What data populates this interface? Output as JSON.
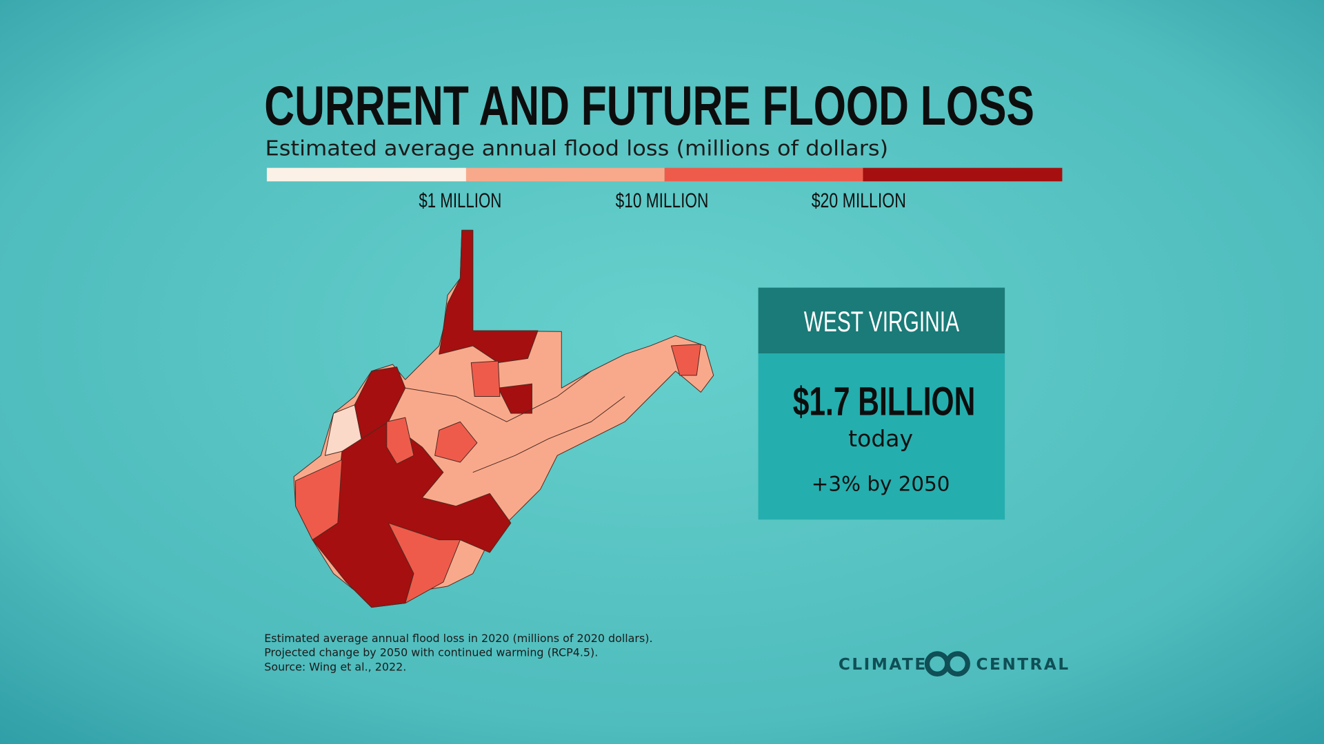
{
  "header": {
    "title": "CURRENT AND FUTURE FLOOD LOSS",
    "subtitle": "Estimated average annual flood loss (millions of dollars)"
  },
  "legend": {
    "labels": [
      "$1 MILLION",
      "$10 MILLION",
      "$20 MILLION"
    ]
  },
  "panel": {
    "state": "WEST VIRGINIA",
    "value": "$1.7 BILLION",
    "period": "today",
    "change": "+3% by 2050"
  },
  "footnote": {
    "lines": [
      "Estimated average annual flood loss in 2020 (millions of 2020 dollars).",
      "Projected change by 2050 with continued warming (RCP4.5).",
      "Source: Wing et al., 2022."
    ]
  },
  "logo": {
    "left": "CLIMATE",
    "right": "CENTRAL"
  }
}
